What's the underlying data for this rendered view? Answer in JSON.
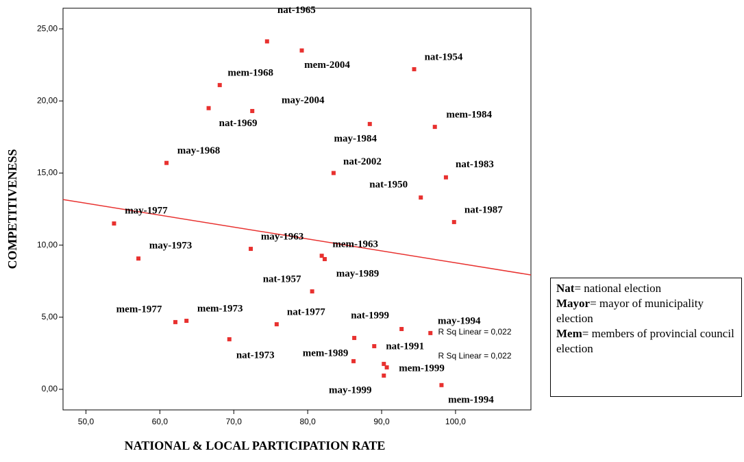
{
  "chart_data": {
    "type": "scatter",
    "x_label": "NATIONAL & LOCAL PARTICIPATION RATE",
    "y_label": "COMPETITIVENESS",
    "xlim": [
      46.9,
      110.2
    ],
    "ylim": [
      -1.43,
      26.43
    ],
    "xticks": [
      {
        "value": 50,
        "label": "50,0"
      },
      {
        "value": 60,
        "label": "60,0"
      },
      {
        "value": 70,
        "label": "70,0"
      },
      {
        "value": 80,
        "label": "80,0"
      },
      {
        "value": 90,
        "label": "90,0"
      },
      {
        "value": 100,
        "label": "100,0"
      }
    ],
    "yticks": [
      {
        "value": 0,
        "label": "0,00"
      },
      {
        "value": 5,
        "label": "5,00"
      },
      {
        "value": 10,
        "label": "10,00"
      },
      {
        "value": 15,
        "label": "15,00"
      },
      {
        "value": 20,
        "label": "20,00"
      },
      {
        "value": 25,
        "label": "25,00"
      }
    ],
    "color": "#e8312f",
    "point_labels": [
      "nat-1965",
      "mem-2004",
      "nat-1954",
      "mem-1968",
      "nat-1969",
      "may-2004",
      "may-1984",
      "mem-1984",
      "may-1968",
      "nat-2002",
      "nat-1983",
      "nat-1950",
      "may-1977",
      "nat-1987",
      "may-1963",
      "mem-1963",
      "may-1989",
      "may-1973",
      "nat-1957",
      "mem-1977",
      "mem-1973",
      "nat-1977",
      "nat-1999",
      "may-1994",
      "nat-1973",
      "nat-1991",
      "mem-1989",
      "mem-1999",
      "may-1999",
      "mem-1994",
      null,
      null
    ],
    "x": [
      74.5,
      79.2,
      94.4,
      68.1,
      66.6,
      72.5,
      88.4,
      97.2,
      60.9,
      83.5,
      98.7,
      95.3,
      53.8,
      99.8,
      72.3,
      81.9,
      82.3,
      57.1,
      80.6,
      62.1,
      63.6,
      75.8,
      86.3,
      96.6,
      69.4,
      89.0,
      86.2,
      90.7,
      90.3,
      98.1,
      92.7,
      90.3
    ],
    "values": [
      24.13,
      23.5,
      22.2,
      21.1,
      19.5,
      19.3,
      18.4,
      18.2,
      15.7,
      15.0,
      14.7,
      13.3,
      11.5,
      11.6,
      9.74,
      9.26,
      9.03,
      9.07,
      6.79,
      4.66,
      4.75,
      4.51,
      3.56,
      3.9,
      3.47,
      2.99,
      1.95,
      1.52,
      0.95,
      0.29,
      4.18,
      1.76
    ],
    "fit_line": {
      "x": [
        46.9,
        110.2
      ],
      "y": [
        13.16,
        7.93
      ],
      "color": "#e8312f"
    },
    "annotations": [
      "R Sq Linear = 0,022",
      "R Sq Linear = 0,022"
    ],
    "legend_box": [
      {
        "term": "Nat",
        "desc": "= national election"
      },
      {
        "term": "Mayor",
        "desc": "= mayor of municipality election"
      },
      {
        "term": "Mem",
        "desc": "= members of provincial council election"
      }
    ]
  }
}
